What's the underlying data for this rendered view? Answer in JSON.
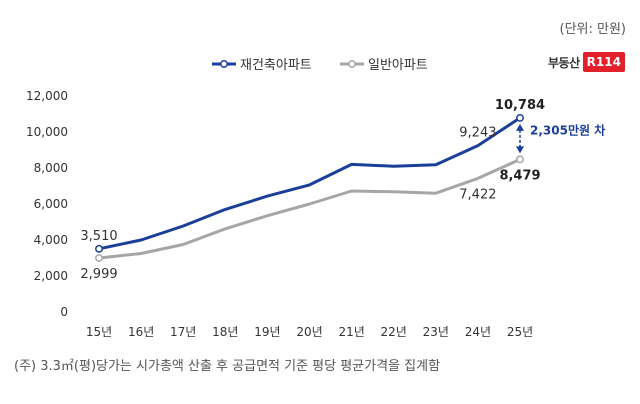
{
  "unit_label": "(단위: 만원)",
  "note": "(주) 3.3㎡(평)당가는 시가총액 산출 후 공급면적 기준 평당 평균가격을 집계함",
  "logo": {
    "text": "부동산",
    "mark": "R114"
  },
  "colors": {
    "series_1": "#1b3f99",
    "series_2": "#a6a6a6"
  },
  "chart_data": {
    "type": "line",
    "categories": [
      "15년",
      "16년",
      "17년",
      "18년",
      "19년",
      "20년",
      "21년",
      "22년",
      "23년",
      "24년",
      "25년"
    ],
    "series": [
      {
        "name": "재건축아파트",
        "values": [
          3510,
          4000,
          4780,
          5700,
          6440,
          7060,
          8200,
          8100,
          8180,
          9243,
          10784
        ]
      },
      {
        "name": "일반아파트",
        "values": [
          2999,
          3250,
          3750,
          4620,
          5350,
          6000,
          6720,
          6680,
          6600,
          7422,
          8479
        ]
      }
    ],
    "ylim": [
      0,
      12000
    ],
    "yticks": [
      {
        "value": 0,
        "label": "0"
      },
      {
        "value": 2000,
        "label": "2,000"
      },
      {
        "value": 4000,
        "label": "4,000"
      },
      {
        "value": 6000,
        "label": "6,000"
      },
      {
        "value": 8000,
        "label": "8,000"
      },
      {
        "value": 10000,
        "label": "10,000"
      },
      {
        "value": 12000,
        "label": "12,000"
      }
    ],
    "data_labels": [
      {
        "series": 0,
        "index": 0,
        "text": "3,510",
        "position": "above"
      },
      {
        "series": 0,
        "index": 9,
        "text": "9,243",
        "position": "above"
      },
      {
        "series": 0,
        "index": 10,
        "text": "10,784",
        "position": "above",
        "bold": true
      },
      {
        "series": 1,
        "index": 0,
        "text": "2,999",
        "position": "below"
      },
      {
        "series": 1,
        "index": 9,
        "text": "7,422",
        "position": "below"
      },
      {
        "series": 1,
        "index": 10,
        "text": "8,479",
        "position": "below",
        "bold": true
      }
    ],
    "annotation": {
      "text": "2,305만원 차",
      "from_value": 8479,
      "to_value": 10784
    },
    "legend": "top",
    "grid": false
  }
}
